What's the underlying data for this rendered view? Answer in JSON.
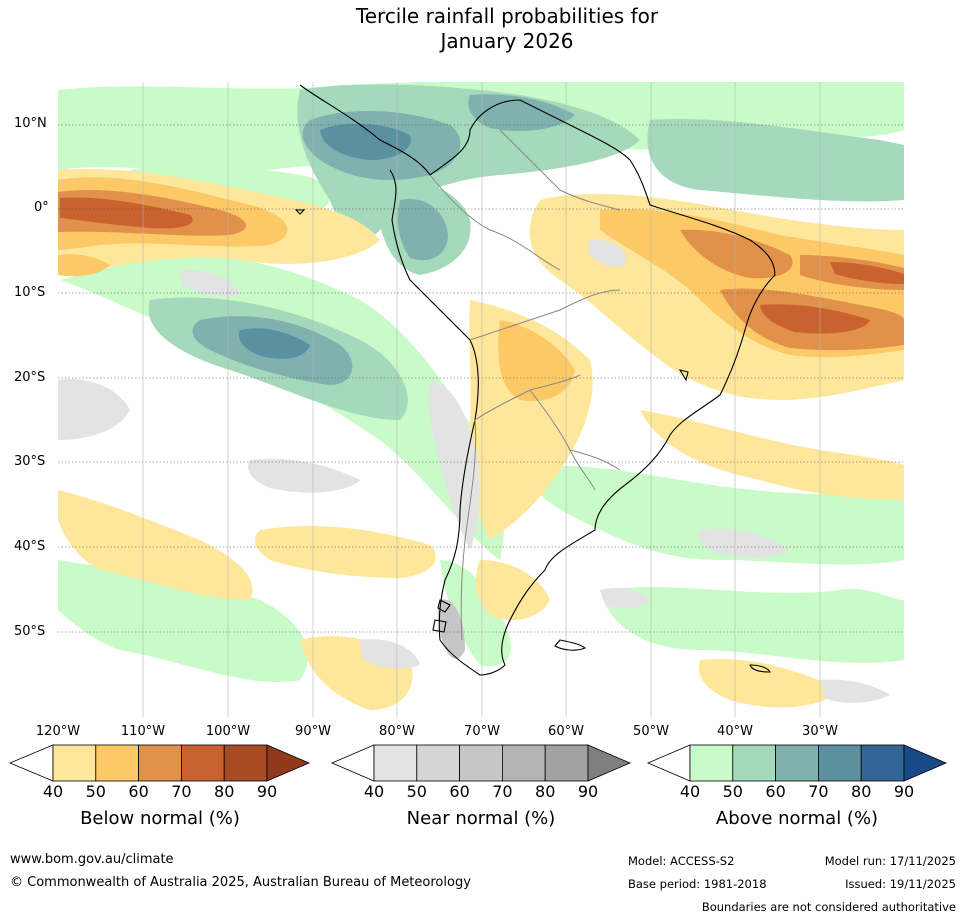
{
  "title": {
    "line1": "Tercile rainfall probabilities for",
    "line2": "January 2026"
  },
  "map": {
    "latitude_labels": [
      "10°N",
      "0°",
      "10°S",
      "20°S",
      "30°S",
      "40°S",
      "50°S"
    ],
    "longitude_labels": [
      "120°W",
      "110°W",
      "100°W",
      "90°W",
      "80°W",
      "70°W",
      "60°W",
      "50°W",
      "40°W",
      "30°W"
    ],
    "region": "South America and adjacent oceans"
  },
  "colorbars": [
    {
      "name": "below-normal",
      "title": "Below normal (%)",
      "ticks": [
        "40",
        "50",
        "60",
        "70",
        "80",
        "90"
      ],
      "colors": [
        "#ffffff",
        "#fee79b",
        "#fdc966",
        "#e1914a",
        "#c9622f",
        "#a84b25",
        "#8f3a1d"
      ]
    },
    {
      "name": "near-normal",
      "title": "Near normal (%)",
      "ticks": [
        "40",
        "50",
        "60",
        "70",
        "80",
        "90"
      ],
      "colors": [
        "#ffffff",
        "#e3e3e3",
        "#d5d5d5",
        "#c6c6c6",
        "#b4b4b4",
        "#a2a2a2",
        "#7f7f7f"
      ]
    },
    {
      "name": "above-normal",
      "title": "Above normal (%)",
      "ticks": [
        "40",
        "50",
        "60",
        "70",
        "80",
        "90"
      ],
      "colors": [
        "#ffffff",
        "#c9fbc9",
        "#a4d9bb",
        "#7fb2ae",
        "#5b90a0",
        "#336595",
        "#174a87"
      ]
    }
  ],
  "footer": {
    "url": "www.bom.gov.au/climate",
    "copyright": "© Commonwealth of Australia 2025, Australian Bureau of Meteorology",
    "model": "Model: ACCESS-S2",
    "model_run": "Model run: 17/11/2025",
    "base_period": "Base period: 1981-2018",
    "issued": "Issued: 19/11/2025",
    "disclaimer": "Boundaries are not considered authoritative"
  }
}
